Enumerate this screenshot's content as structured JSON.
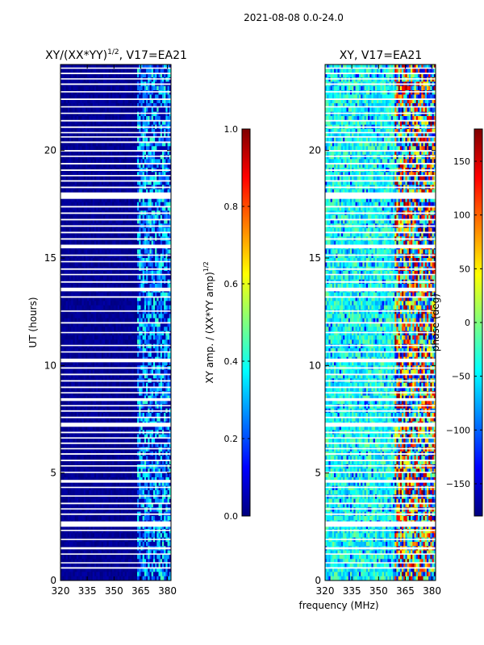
{
  "figure": {
    "suptitle": "2021-08-08 0.0-24.0",
    "xlabel": "frequency (MHz)",
    "colors": {
      "jet": [
        "#00007f",
        "#0000ff",
        "#007fff",
        "#00ffff",
        "#7fff7f",
        "#ffff00",
        "#ff7f00",
        "#ff0000",
        "#7f0000"
      ],
      "gap": "#ffffff",
      "axis": "#000000"
    }
  },
  "chart_data": [
    {
      "type": "heatmap",
      "title_prefix": "XY/(XX*YY)",
      "title_sup": "1/2",
      "title_suffix": ", V17=EA21",
      "ylabel": "UT (hours)",
      "xlim": [
        320,
        382
      ],
      "ylim": [
        0,
        24
      ],
      "xticks": [
        320,
        335,
        350,
        365,
        380
      ],
      "yticks": [
        0,
        5,
        10,
        15,
        20
      ],
      "active_band_mhz": [
        363,
        382
      ],
      "description_values": "amplitude near 0 below 363 MHz, scattered 0.1-0.3 above 363 MHz",
      "colorbar": {
        "label": "XY amp. / (XX*YY amp)",
        "label_sup": "1/2",
        "range": [
          0.0,
          1.0
        ],
        "ticks": [
          "0.0",
          "0.2",
          "0.4",
          "0.6",
          "0.8",
          "1.0"
        ]
      }
    },
    {
      "type": "heatmap",
      "title": "XY, V17=EA21",
      "ylabel": "",
      "xlim": [
        320,
        382
      ],
      "ylim": [
        0,
        24
      ],
      "xticks": [
        320,
        335,
        350,
        365,
        380
      ],
      "yticks": [
        0,
        5,
        10,
        15,
        20
      ],
      "active_band_mhz": [
        359,
        382
      ],
      "description_values": "phase mostly -60 to 0 deg below 359 MHz, random -180 to 180 deg above",
      "colorbar": {
        "label": "phase (deg)",
        "range": [
          -180,
          180
        ],
        "ticks": [
          "−150",
          "−100",
          "−50",
          "0",
          "50",
          "100",
          "150"
        ]
      }
    }
  ],
  "gaps_ut_hours": [
    [
      0.55,
      0.62
    ],
    [
      0.8,
      0.85
    ],
    [
      1.2,
      1.26
    ],
    [
      1.45,
      1.55
    ],
    [
      1.88,
      1.94
    ],
    [
      2.3,
      2.36
    ],
    [
      2.5,
      2.75
    ],
    [
      3.05,
      3.12
    ],
    [
      3.3,
      3.36
    ],
    [
      3.55,
      3.62
    ],
    [
      3.9,
      3.96
    ],
    [
      4.3,
      4.36
    ],
    [
      4.55,
      4.68
    ],
    [
      5.0,
      5.06
    ],
    [
      5.3,
      5.36
    ],
    [
      5.55,
      5.62
    ],
    [
      5.85,
      5.92
    ],
    [
      6.1,
      6.16
    ],
    [
      6.35,
      6.42
    ],
    [
      6.6,
      6.66
    ],
    [
      6.85,
      6.92
    ],
    [
      7.15,
      7.34
    ],
    [
      7.55,
      7.62
    ],
    [
      7.85,
      7.92
    ],
    [
      8.1,
      8.16
    ],
    [
      8.35,
      8.48
    ],
    [
      8.7,
      8.76
    ],
    [
      8.95,
      9.02
    ],
    [
      9.25,
      9.32
    ],
    [
      9.55,
      9.62
    ],
    [
      9.85,
      9.92
    ],
    [
      10.15,
      10.32
    ],
    [
      10.6,
      10.66
    ],
    [
      10.9,
      10.96
    ],
    [
      11.5,
      11.56
    ],
    [
      11.95,
      12.02
    ],
    [
      12.5,
      12.56
    ],
    [
      13.15,
      13.22
    ],
    [
      13.45,
      13.62
    ],
    [
      13.85,
      13.92
    ],
    [
      14.2,
      14.26
    ],
    [
      14.45,
      14.52
    ],
    [
      14.8,
      14.86
    ],
    [
      15.1,
      15.16
    ],
    [
      15.45,
      15.62
    ],
    [
      15.85,
      15.92
    ],
    [
      16.15,
      16.22
    ],
    [
      16.45,
      16.52
    ],
    [
      16.75,
      16.82
    ],
    [
      17.05,
      17.12
    ],
    [
      17.35,
      17.42
    ],
    [
      17.75,
      18.05
    ],
    [
      18.25,
      18.32
    ],
    [
      18.55,
      18.62
    ],
    [
      18.8,
      18.86
    ],
    [
      19.05,
      19.12
    ],
    [
      19.35,
      19.42
    ],
    [
      19.7,
      19.76
    ],
    [
      19.95,
      20.02
    ],
    [
      20.35,
      20.42
    ],
    [
      20.6,
      20.66
    ],
    [
      20.8,
      20.86
    ],
    [
      21.05,
      21.12
    ],
    [
      21.35,
      21.42
    ],
    [
      21.7,
      21.76
    ],
    [
      22.0,
      22.06
    ],
    [
      22.35,
      22.42
    ],
    [
      22.7,
      22.76
    ],
    [
      23.05,
      23.12
    ],
    [
      23.3,
      23.36
    ],
    [
      23.55,
      23.62
    ],
    [
      23.8,
      23.86
    ]
  ]
}
